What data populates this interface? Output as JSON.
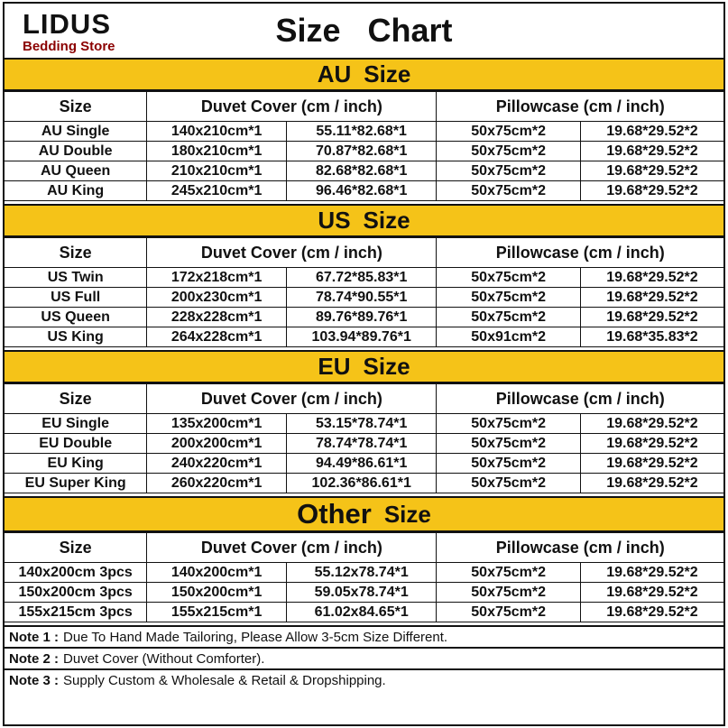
{
  "header": {
    "store_name": "LIDUS",
    "store_subtitle": "Bedding Store",
    "title": "Size Chart"
  },
  "colors": {
    "banner_yellow": "#F5C318",
    "subtitle_red": "#8B0000"
  },
  "sections": [
    {
      "id": "au",
      "large": false,
      "banner": {
        "region": "AU",
        "word": "Size"
      },
      "columns": {
        "size": "Size",
        "duvet": "Duvet Cover (cm / inch)",
        "pillow": "Pillowcase (cm / inch)"
      },
      "rows": [
        [
          "AU Single",
          "140x210cm*1",
          "55.11*82.68*1",
          "50x75cm*2",
          "19.68*29.52*2"
        ],
        [
          "AU Double",
          "180x210cm*1",
          "70.87*82.68*1",
          "50x75cm*2",
          "19.68*29.52*2"
        ],
        [
          "AU Queen",
          "210x210cm*1",
          "82.68*82.68*1",
          "50x75cm*2",
          "19.68*29.52*2"
        ],
        [
          "AU King",
          "245x210cm*1",
          "96.46*82.68*1",
          "50x75cm*2",
          "19.68*29.52*2"
        ]
      ]
    },
    {
      "id": "us",
      "large": false,
      "banner": {
        "region": "US",
        "word": "Size"
      },
      "columns": {
        "size": "Size",
        "duvet": "Duvet Cover (cm / inch)",
        "pillow": "Pillowcase (cm / inch)"
      },
      "rows": [
        [
          "US Twin",
          "172x218cm*1",
          "67.72*85.83*1",
          "50x75cm*2",
          "19.68*29.52*2"
        ],
        [
          "US Full",
          "200x230cm*1",
          "78.74*90.55*1",
          "50x75cm*2",
          "19.68*29.52*2"
        ],
        [
          "US Queen",
          "228x228cm*1",
          "89.76*89.76*1",
          "50x75cm*2",
          "19.68*29.52*2"
        ],
        [
          "US King",
          "264x228cm*1",
          "103.94*89.76*1",
          "50x91cm*2",
          "19.68*35.83*2"
        ]
      ]
    },
    {
      "id": "eu",
      "large": false,
      "banner": {
        "region": "EU",
        "word": "Size"
      },
      "columns": {
        "size": "Size",
        "duvet": "Duvet Cover (cm / inch)",
        "pillow": "Pillowcase (cm / inch)"
      },
      "rows": [
        [
          "EU Single",
          "135x200cm*1",
          "53.15*78.74*1",
          "50x75cm*2",
          "19.68*29.52*2"
        ],
        [
          "EU Double",
          "200x200cm*1",
          "78.74*78.74*1",
          "50x75cm*2",
          "19.68*29.52*2"
        ],
        [
          "EU King",
          "240x220cm*1",
          "94.49*86.61*1",
          "50x75cm*2",
          "19.68*29.52*2"
        ],
        [
          "EU Super King",
          "260x220cm*1",
          "102.36*86.61*1",
          "50x75cm*2",
          "19.68*29.52*2"
        ]
      ]
    },
    {
      "id": "other",
      "large": true,
      "banner": {
        "region": "Other",
        "word": "Size"
      },
      "columns": {
        "size": "Size",
        "duvet": "Duvet Cover (cm / inch)",
        "pillow": "Pillowcase (cm / inch)"
      },
      "rows": [
        [
          "140x200cm 3pcs",
          "140x200cm*1",
          "55.12x78.74*1",
          "50x75cm*2",
          "19.68*29.52*2"
        ],
        [
          "150x200cm 3pcs",
          "150x200cm*1",
          "59.05x78.74*1",
          "50x75cm*2",
          "19.68*29.52*2"
        ],
        [
          "155x215cm 3pcs",
          "155x215cm*1",
          "61.02x84.65*1",
          "50x75cm*2",
          "19.68*29.52*2"
        ]
      ]
    }
  ],
  "notes": [
    {
      "label": "Note 1 :",
      "text": "Due To Hand Made Tailoring, Please Allow 3-5cm Size Different."
    },
    {
      "label": "Note 2 :",
      "text": "Duvet Cover (Without Comforter)."
    },
    {
      "label": "Note 3 :",
      "text": "Supply Custom & Wholesale & Retail & Dropshipping."
    }
  ]
}
